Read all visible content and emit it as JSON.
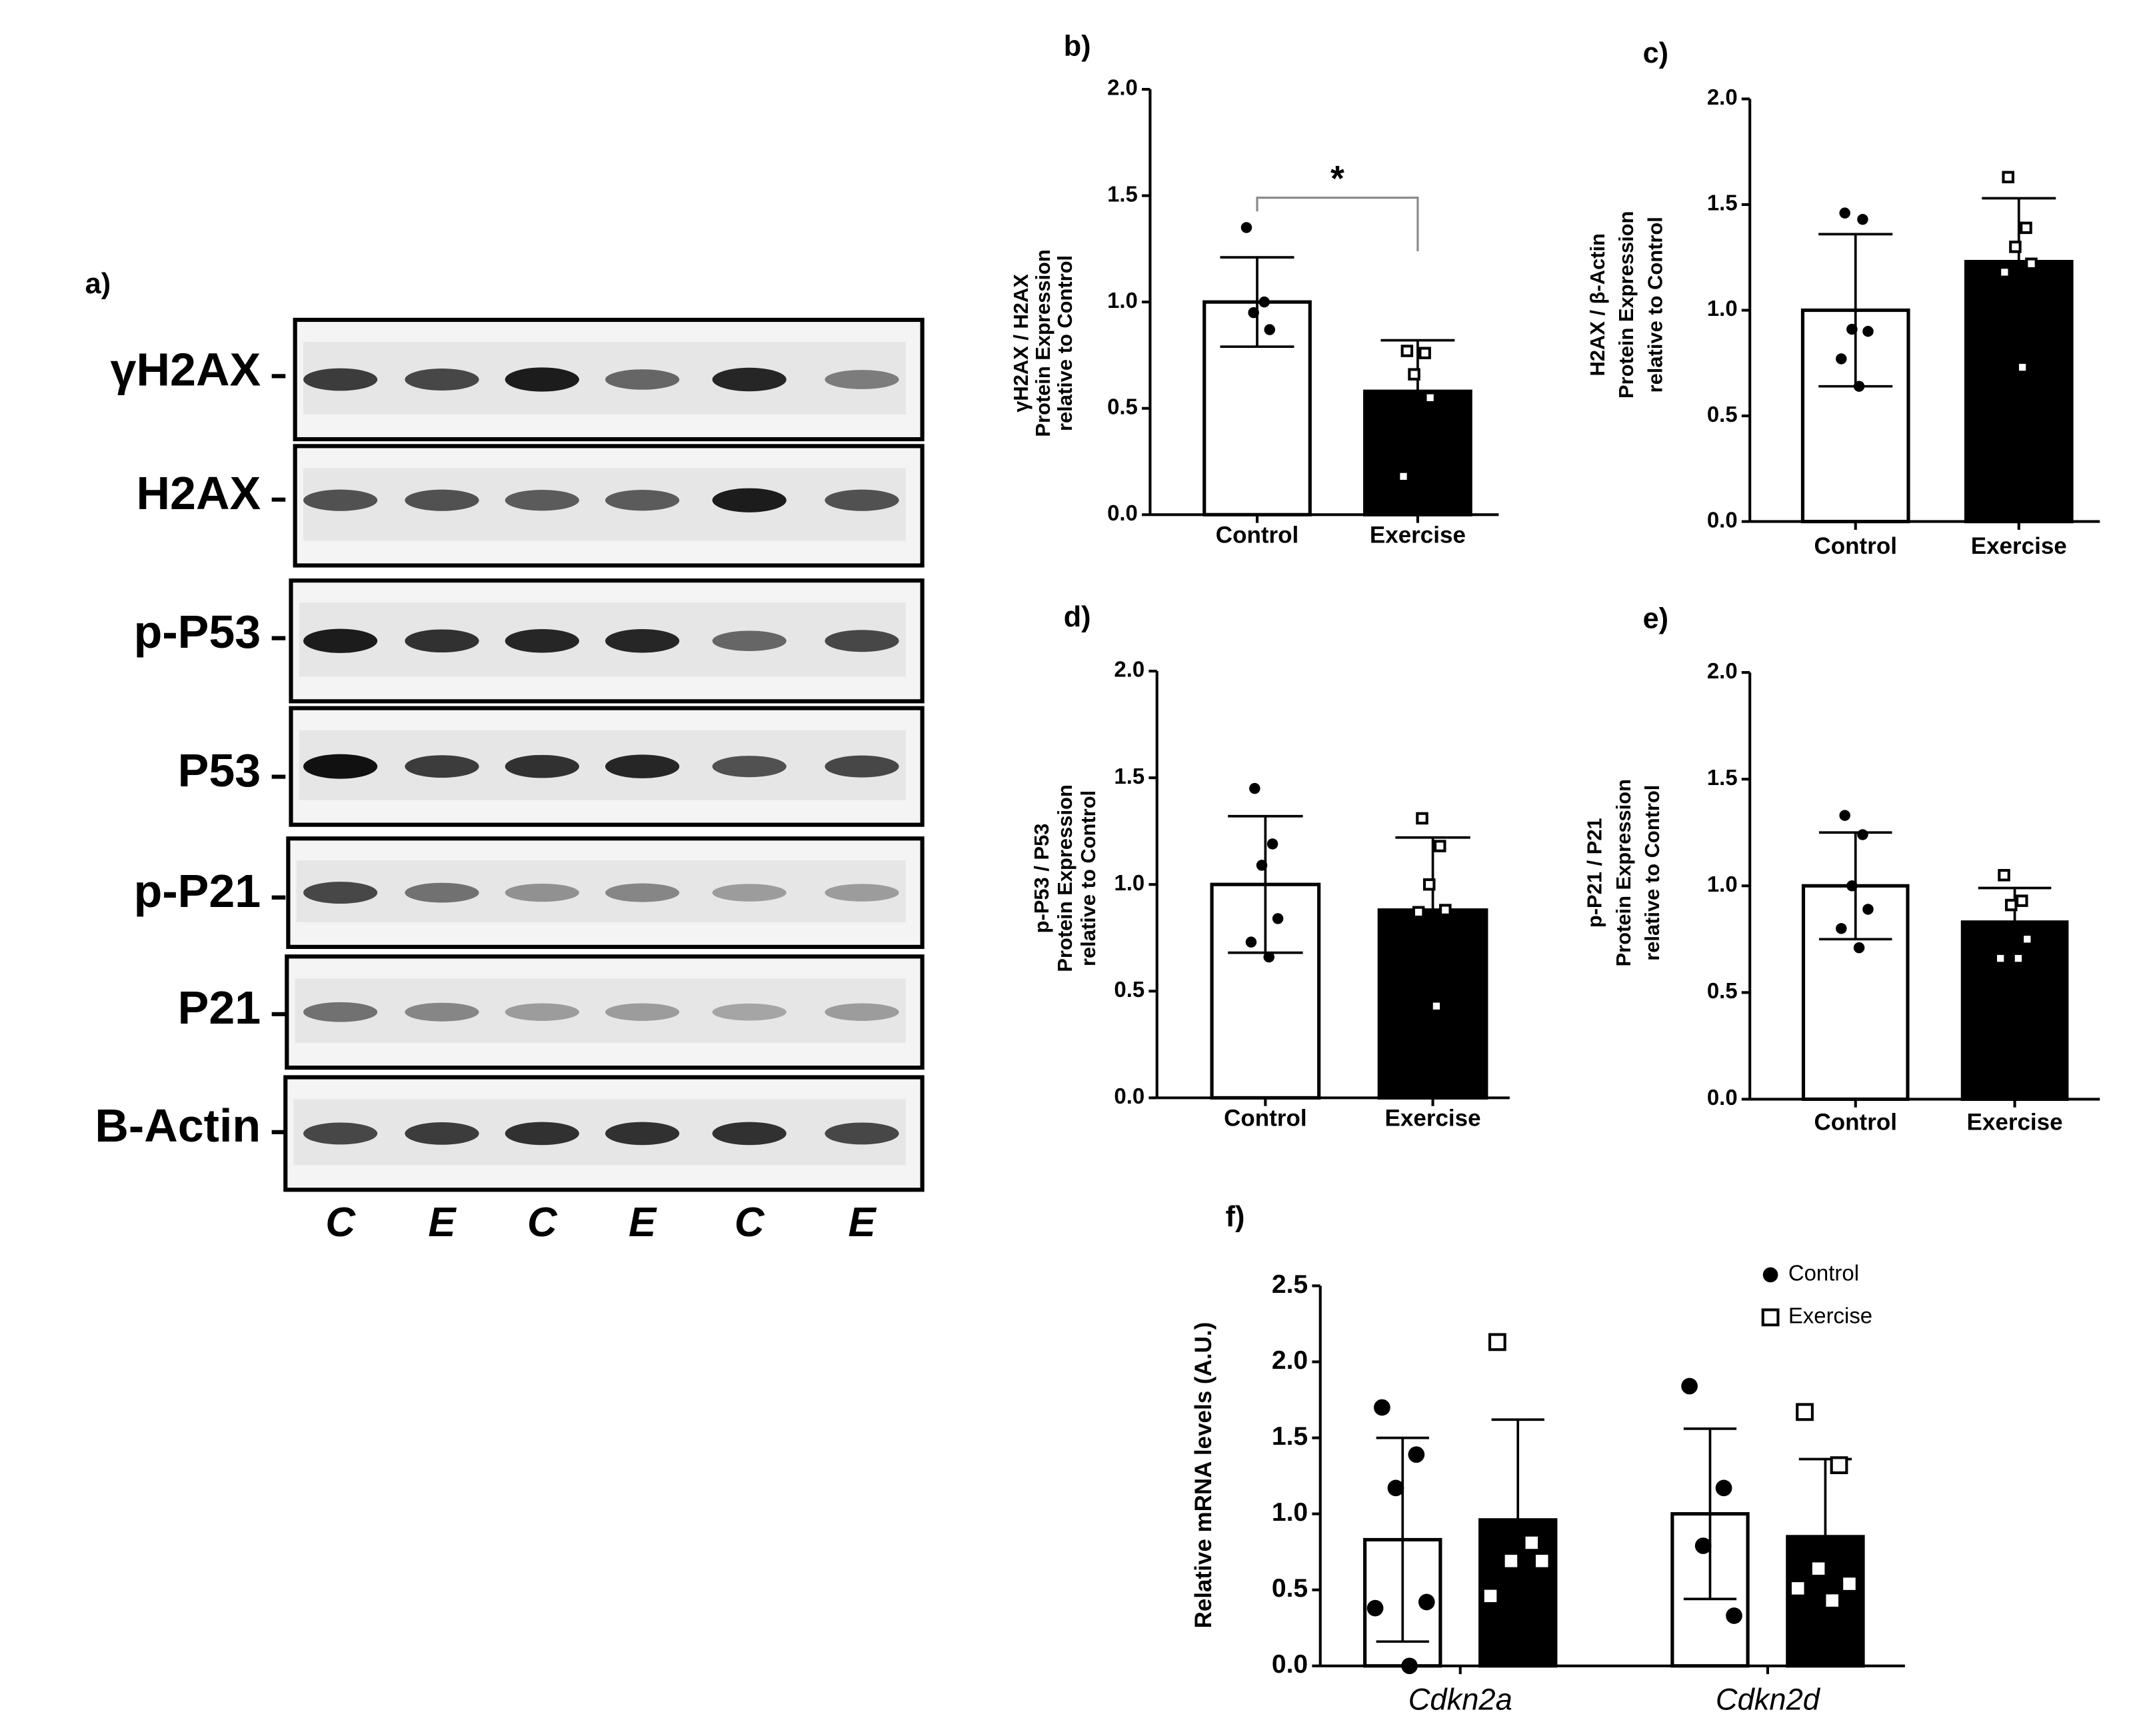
{
  "blot": {
    "label": "a)",
    "rows": [
      "γH2AX",
      "H2AX",
      "p-P53",
      "P53",
      "p-P21",
      "P21",
      "B-Actin"
    ],
    "lanes": [
      "C",
      "E",
      "C",
      "E",
      "C",
      "E"
    ]
  },
  "chart_data": [
    {
      "type": "bar",
      "panel": "b)",
      "ylabel": [
        "γH2AX / H2AX",
        "Protein Expression",
        "relative to Control"
      ],
      "categories": [
        "Control",
        "Exercise"
      ],
      "values": [
        1.0,
        0.58
      ],
      "errors": [
        0.21,
        0.24
      ],
      "points": [
        [
          1.35,
          1.0,
          0.95,
          0.87
        ],
        [
          0.77,
          0.76,
          0.66,
          0.55,
          0.18
        ]
      ],
      "colors": [
        "#ffffff",
        "#000000"
      ],
      "markers": [
        "circle",
        "square"
      ],
      "annotation": "*",
      "ylim": [
        0,
        2
      ],
      "yticks": [
        {
          "value": 0,
          "label": "0.0"
        },
        {
          "value": 0.5,
          "label": "0.5"
        },
        {
          "value": 1,
          "label": "1.0"
        },
        {
          "value": 1.5,
          "label": "1.5"
        },
        {
          "value": 2,
          "label": "2.0"
        }
      ]
    },
    {
      "type": "bar",
      "panel": "c)",
      "ylabel": [
        "H2AX / β-Actin",
        "Protein Expression",
        "relative to Control"
      ],
      "categories": [
        "Control",
        "Exercise"
      ],
      "values": [
        1.0,
        1.23
      ],
      "errors": [
        0.36,
        0.3
      ],
      "points": [
        [
          1.46,
          1.43,
          0.91,
          0.9,
          0.77,
          0.64
        ],
        [
          1.63,
          1.39,
          1.3,
          1.22,
          1.18,
          0.73
        ]
      ],
      "colors": [
        "#ffffff",
        "#000000"
      ],
      "markers": [
        "circle",
        "square"
      ],
      "ylim": [
        0,
        2
      ],
      "yticks": [
        {
          "value": 0,
          "label": "0.0"
        },
        {
          "value": 0.5,
          "label": "0.5"
        },
        {
          "value": 1,
          "label": "1.0"
        },
        {
          "value": 1.5,
          "label": "1.5"
        },
        {
          "value": 2,
          "label": "2.0"
        }
      ]
    },
    {
      "type": "bar",
      "panel": "d)",
      "ylabel": [
        "p-P53 / P53",
        "Protein Expression",
        "relative to Control"
      ],
      "categories": [
        "Control",
        "Exercise"
      ],
      "values": [
        1.0,
        0.88
      ],
      "errors": [
        0.32,
        0.34
      ],
      "points": [
        [
          1.45,
          1.19,
          1.09,
          0.84,
          0.73,
          0.66
        ],
        [
          1.31,
          1.18,
          1.0,
          0.88,
          0.87,
          0.43
        ]
      ],
      "colors": [
        "#ffffff",
        "#000000"
      ],
      "markers": [
        "circle",
        "square"
      ],
      "ylim": [
        0,
        2
      ],
      "yticks": [
        {
          "value": 0,
          "label": "0.0"
        },
        {
          "value": 0.5,
          "label": "0.5"
        },
        {
          "value": 1,
          "label": "1.0"
        },
        {
          "value": 1.5,
          "label": "1.5"
        },
        {
          "value": 2,
          "label": "2.0"
        }
      ]
    },
    {
      "type": "bar",
      "panel": "e)",
      "ylabel": [
        "p-P21 / P21",
        "Protein Expression",
        "relative to Control"
      ],
      "categories": [
        "Control",
        "Exercise"
      ],
      "values": [
        1.0,
        0.83
      ],
      "errors": [
        0.25,
        0.16
      ],
      "points": [
        [
          1.33,
          1.24,
          1.0,
          0.89,
          0.8,
          0.71
        ],
        [
          1.05,
          0.93,
          0.91,
          0.75,
          0.66,
          0.66
        ]
      ],
      "colors": [
        "#ffffff",
        "#000000"
      ],
      "markers": [
        "circle",
        "square"
      ],
      "ylim": [
        0,
        2
      ],
      "yticks": [
        {
          "value": 0,
          "label": "0.0"
        },
        {
          "value": 0.5,
          "label": "0.5"
        },
        {
          "value": 1,
          "label": "1.0"
        },
        {
          "value": 1.5,
          "label": "1.5"
        },
        {
          "value": 2,
          "label": "2.0"
        }
      ]
    },
    {
      "type": "bar",
      "panel": "f)",
      "ylabel": [
        "Relative mRNA levels (A.U.)"
      ],
      "categories": [
        "Cdkn2a",
        "Cdkn2d"
      ],
      "legend": "top-right",
      "series": [
        {
          "name": "Control",
          "color": "#ffffff",
          "marker": "circle",
          "values": [
            0.83,
            1.0
          ],
          "errors": [
            0.67,
            0.56
          ],
          "points": [
            [
              1.7,
              1.39,
              1.17,
              0.42,
              0.38,
              0.0
            ],
            [
              1.84,
              1.17,
              0.79,
              0.33
            ]
          ]
        },
        {
          "name": "Exercise",
          "color": "#000000",
          "marker": "square",
          "values": [
            0.96,
            0.85
          ],
          "errors": [
            0.66,
            0.51
          ],
          "points": [
            [
              2.13,
              0.81,
              0.69,
              0.69,
              0.46
            ],
            [
              1.67,
              1.32,
              0.64,
              0.54,
              0.51,
              0.43
            ]
          ]
        }
      ],
      "ylim": [
        0,
        2.5
      ],
      "yticks": [
        {
          "value": 0,
          "label": "0.0"
        },
        {
          "value": 0.5,
          "label": "0.5"
        },
        {
          "value": 1,
          "label": "1.0"
        },
        {
          "value": 1.5,
          "label": "1.5"
        },
        {
          "value": 2,
          "label": "2.0"
        },
        {
          "value": 2.5,
          "label": "2.5"
        }
      ]
    }
  ]
}
